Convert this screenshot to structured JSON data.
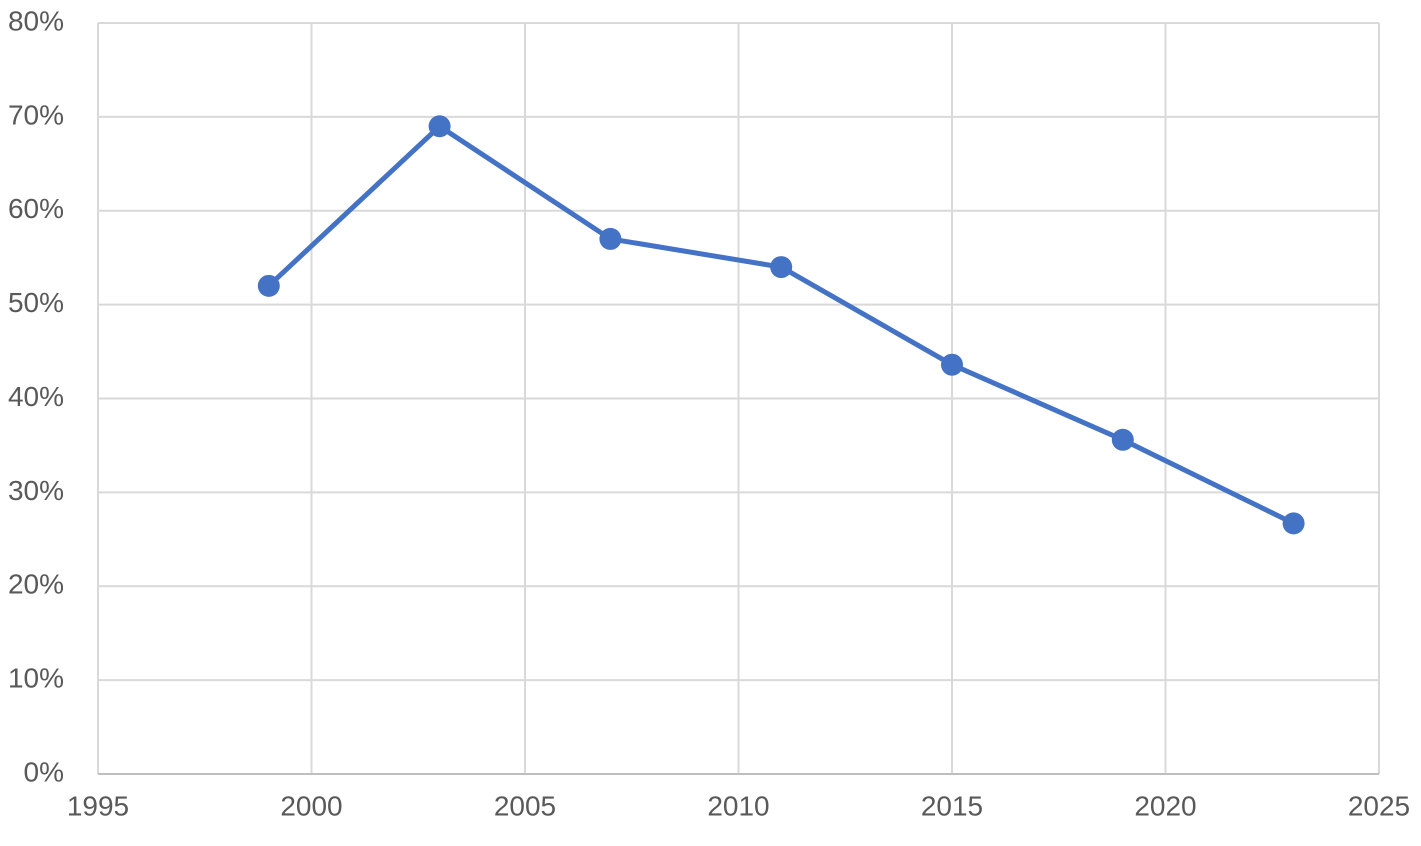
{
  "chart_data": {
    "type": "line",
    "x": [
      1999,
      2003,
      2007,
      2011,
      2015,
      2019,
      2023
    ],
    "series": [
      {
        "color": "#4472c4",
        "values": [
          52,
          69,
          57,
          54,
          43.6,
          35.6,
          26.7
        ]
      }
    ],
    "xlim": [
      1995,
      2025
    ],
    "xticks": [
      1995,
      2000,
      2005,
      2010,
      2015,
      2020,
      2025
    ],
    "ylim": [
      0,
      80
    ],
    "yticks": [
      {
        "value": 0,
        "label": "0%"
      },
      {
        "value": 10,
        "label": "10%"
      },
      {
        "value": 20,
        "label": "20%"
      },
      {
        "value": 30,
        "label": "30%"
      },
      {
        "value": 40,
        "label": "40%"
      },
      {
        "value": 50,
        "label": "50%"
      },
      {
        "value": 60,
        "label": "60%"
      },
      {
        "value": 70,
        "label": "70%"
      },
      {
        "value": 80,
        "label": "80%"
      }
    ],
    "grid": true
  }
}
